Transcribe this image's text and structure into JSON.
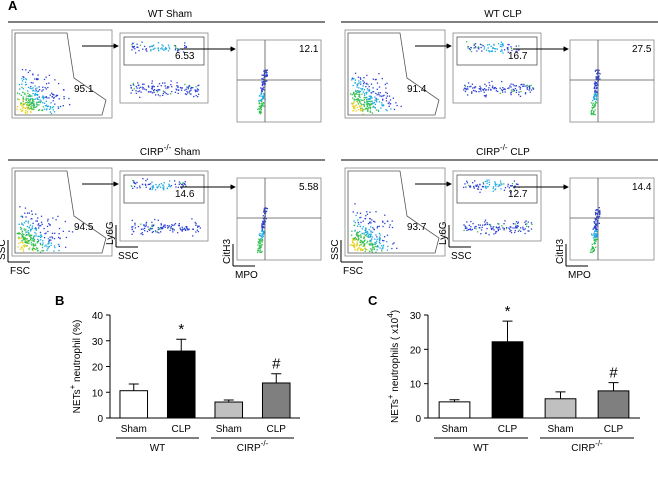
{
  "panel_labels": {
    "a": "A"
  },
  "flow": {
    "groups": [
      {
        "title": [
          {
            "text": "WT Sham"
          }
        ],
        "gates": [
          95.1,
          6.53,
          12.1
        ]
      },
      {
        "title": [
          {
            "text": "WT CLP"
          }
        ],
        "gates": [
          91.4,
          16.7,
          27.5
        ]
      },
      {
        "title": [
          {
            "text": "CIRP"
          },
          {
            "sup": "-/-"
          },
          {
            "text": "  Sham"
          }
        ],
        "gates": [
          94.5,
          14.6,
          5.58
        ]
      },
      {
        "title": [
          {
            "text": "CIRP"
          },
          {
            "sup": "-/-"
          },
          {
            "text": "  CLP"
          }
        ],
        "gates": [
          93.7,
          12.7,
          14.4
        ]
      }
    ],
    "axis_labels": [
      {
        "y": "SSC",
        "x": "FSC"
      },
      {
        "y": "Ly6G",
        "x": "SSC"
      },
      {
        "y": "CitH3",
        "x": "MPO"
      }
    ]
  },
  "chart_data": [
    {
      "type": "bar",
      "panel_label": "B",
      "y_label": [
        {
          "text": "NETs"
        },
        {
          "sup": "+"
        },
        {
          "text": " neutrophil (%)"
        }
      ],
      "categories": [
        "Sham",
        "CLP",
        "Sham",
        "CLP"
      ],
      "groups": [
        [
          {
            "text": "WT"
          }
        ],
        [
          {
            "text": "CIRP"
          },
          {
            "sup": "-/-"
          }
        ]
      ],
      "values": [
        10.6,
        26,
        6.2,
        13.6
      ],
      "errors": [
        2.6,
        4.6,
        0.8,
        3.6
      ],
      "colors": [
        "#ffffff",
        "#000000",
        "#c0c0c0",
        "#7f7f7f"
      ],
      "annotations": [
        null,
        "*",
        null,
        "#"
      ],
      "ylim": [
        0,
        40
      ],
      "yticks": [
        0,
        10,
        20,
        30,
        40
      ]
    },
    {
      "type": "bar",
      "panel_label": "C",
      "y_label": [
        {
          "text": "NETs"
        },
        {
          "sup": "+"
        },
        {
          "text": " neutrophils  ( x10"
        },
        {
          "sup": "4"
        },
        {
          "text": ")"
        }
      ],
      "categories": [
        "Sham",
        "CLP",
        "Sham",
        "CLP"
      ],
      "groups": [
        [
          {
            "text": "WT"
          }
        ],
        [
          {
            "text": "CIRP"
          },
          {
            "sup": "-/-"
          }
        ]
      ],
      "values": [
        4.7,
        22.2,
        5.6,
        7.9
      ],
      "errors": [
        0.6,
        6,
        2,
        2.4
      ],
      "colors": [
        "#ffffff",
        "#000000",
        "#c0c0c0",
        "#7f7f7f"
      ],
      "annotations": [
        null,
        "*",
        null,
        "#"
      ],
      "ylim": [
        0,
        30
      ],
      "yticks": [
        0,
        10,
        20,
        30
      ]
    }
  ]
}
